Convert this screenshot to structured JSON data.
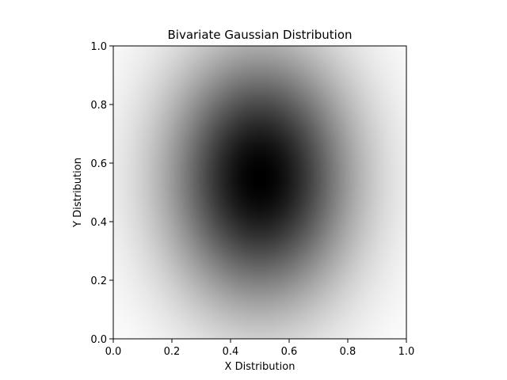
{
  "chart_data": {
    "type": "heatmap",
    "title": "Bivariate Gaussian Distribution",
    "xlabel": "X Distribution",
    "ylabel": "Y Distribution",
    "xlim": [
      0.0,
      1.0
    ],
    "ylim": [
      0.0,
      1.0
    ],
    "xticks": [
      "0.0",
      "0.2",
      "0.4",
      "0.6",
      "0.8",
      "1.0"
    ],
    "yticks": [
      "0.0",
      "0.2",
      "0.4",
      "0.6",
      "0.8",
      "1.0"
    ],
    "grid": false,
    "colormap": "gray_r",
    "distribution": {
      "mean_x": 0.5,
      "mean_y": 0.55,
      "sigma_x": 0.22,
      "sigma_y": 0.3
    },
    "colors": {
      "peak": "#000000",
      "background": "#ffffff"
    }
  }
}
